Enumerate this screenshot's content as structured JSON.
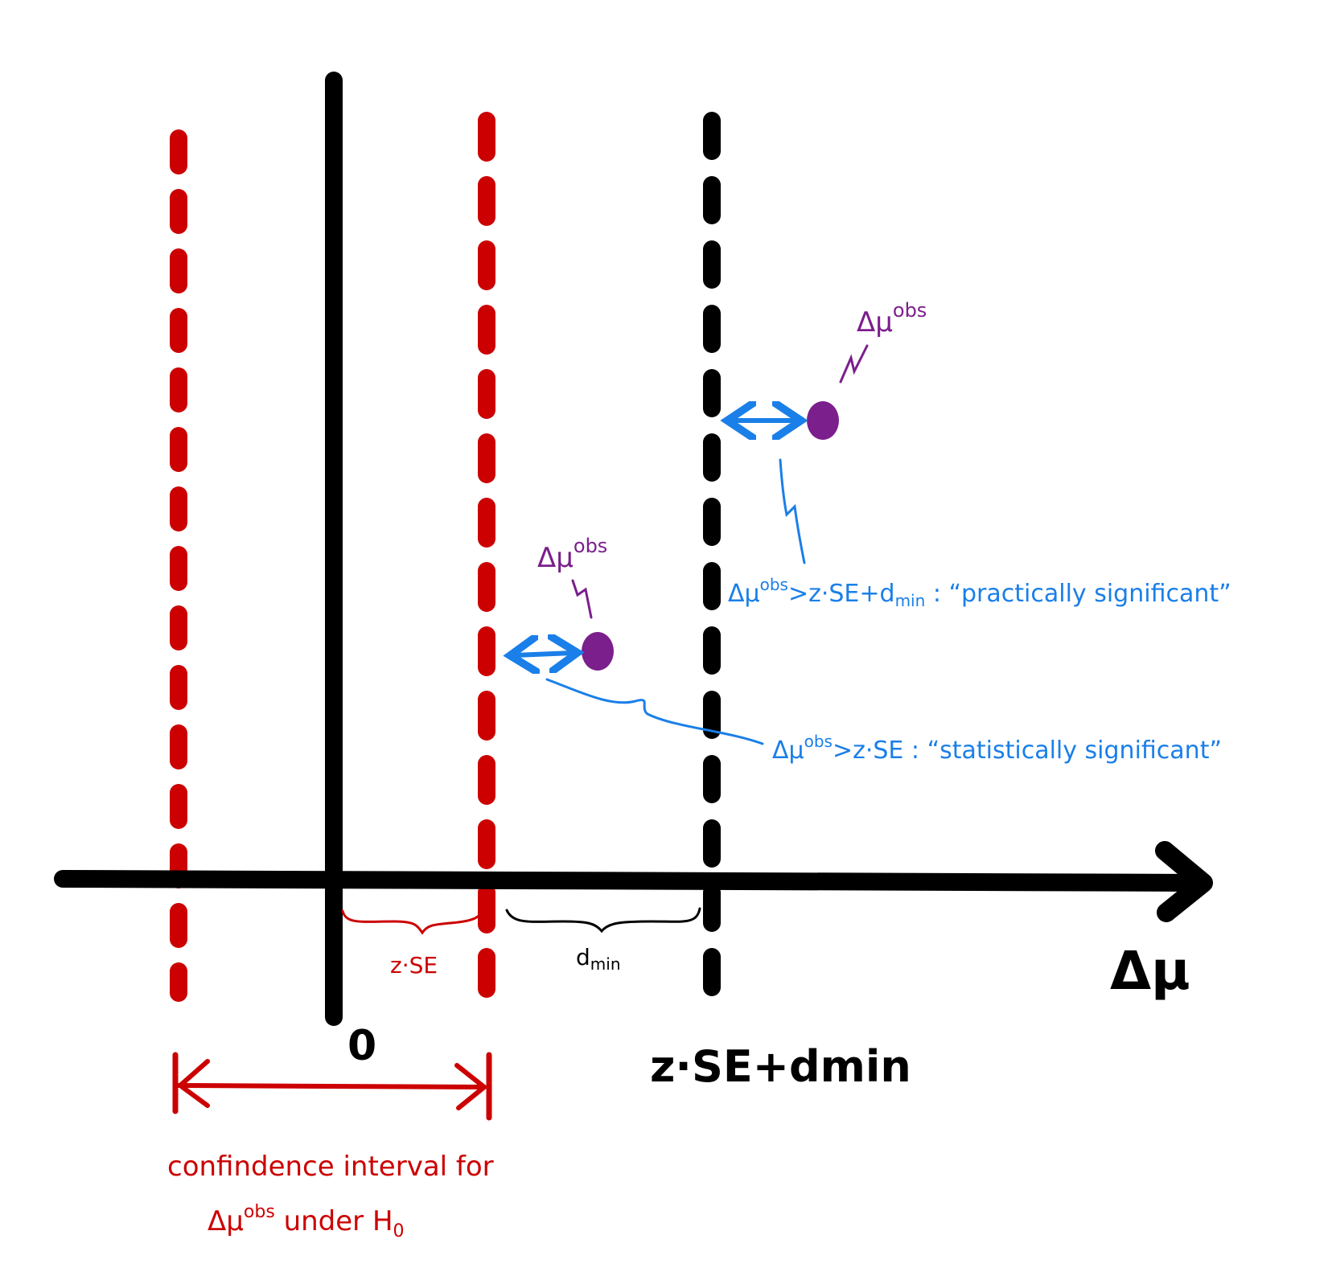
{
  "axis": {
    "label": "Δμ",
    "zero_label": "0",
    "threshold_label": "z·SE+dmin"
  },
  "braces": {
    "red_label": "z·SE",
    "black_label_main": "d",
    "black_label_sub": "min"
  },
  "confidence_interval": {
    "line1": "confindence interval for",
    "line2_prefix": "Δμ",
    "line2_sup": "obs",
    "line2_suffix": " under  H",
    "line2_sub": "0"
  },
  "points": [
    {
      "label_main": "Δμ",
      "label_sup": "obs"
    },
    {
      "label_main": "Δμ",
      "label_sup": "obs"
    }
  ],
  "statistical": {
    "prefix": "Δμ",
    "sup": "obs",
    "rest": ">z·SE : “statistically  significant”"
  },
  "practical": {
    "prefix": "Δμ",
    "sup": "obs",
    "mid": ">z·SE+d",
    "sub": "min",
    "rest": " : “practically  significant”"
  },
  "colors": {
    "axis": "#000000",
    "ci": "#cc0000",
    "point": "#7b1f8c",
    "annotation": "#1a7fe8"
  }
}
